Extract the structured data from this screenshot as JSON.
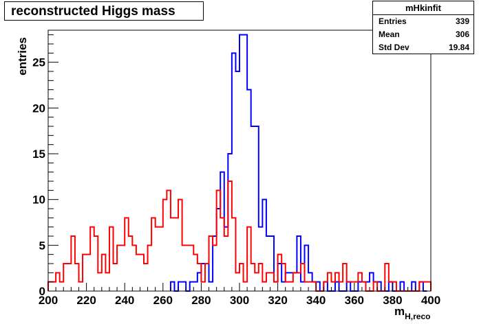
{
  "title": "reconstructed Higgs mass",
  "stats": {
    "name": "mHkinfit",
    "rows": [
      {
        "label": "Entries",
        "value": "339"
      },
      {
        "label": "Mean",
        "value": "306"
      },
      {
        "label": "Std Dev",
        "value": "19.84"
      }
    ]
  },
  "chart_data": {
    "type": "histogram",
    "xlabel": "m",
    "xlabel_sub": "H,reco",
    "ylabel": "entries",
    "xlim": [
      200,
      400
    ],
    "ylim": [
      0,
      28.5
    ],
    "x_ticks": [
      200,
      220,
      240,
      260,
      280,
      300,
      320,
      340,
      360,
      380,
      400
    ],
    "y_ticks": [
      0,
      5,
      10,
      15,
      20,
      25
    ],
    "bin_width": 2,
    "series": [
      {
        "color": "#0000ff",
        "bins": [
          {
            "x": 264,
            "y": 1
          },
          {
            "x": 266,
            "y": 0
          },
          {
            "x": 268,
            "y": 1
          },
          {
            "x": 270,
            "y": 1
          },
          {
            "x": 272,
            "y": 0
          },
          {
            "x": 274,
            "y": 1
          },
          {
            "x": 276,
            "y": 1
          },
          {
            "x": 278,
            "y": 2
          },
          {
            "x": 280,
            "y": 3
          },
          {
            "x": 282,
            "y": 3
          },
          {
            "x": 284,
            "y": 1
          },
          {
            "x": 286,
            "y": 6
          },
          {
            "x": 288,
            "y": 9
          },
          {
            "x": 290,
            "y": 13
          },
          {
            "x": 292,
            "y": 7
          },
          {
            "x": 294,
            "y": 15
          },
          {
            "x": 296,
            "y": 26
          },
          {
            "x": 298,
            "y": 24
          },
          {
            "x": 300,
            "y": 28
          },
          {
            "x": 302,
            "y": 28
          },
          {
            "x": 304,
            "y": 22
          },
          {
            "x": 306,
            "y": 18
          },
          {
            "x": 308,
            "y": 18
          },
          {
            "x": 310,
            "y": 7
          },
          {
            "x": 312,
            "y": 10
          },
          {
            "x": 314,
            "y": 6
          },
          {
            "x": 316,
            "y": 6
          },
          {
            "x": 318,
            "y": 1
          },
          {
            "x": 320,
            "y": 3
          },
          {
            "x": 322,
            "y": 1
          },
          {
            "x": 324,
            "y": 2
          },
          {
            "x": 326,
            "y": 2
          },
          {
            "x": 328,
            "y": 2
          },
          {
            "x": 330,
            "y": 6
          },
          {
            "x": 332,
            "y": 1
          },
          {
            "x": 334,
            "y": 5
          },
          {
            "x": 336,
            "y": 2
          },
          {
            "x": 338,
            "y": 1
          },
          {
            "x": 340,
            "y": 1
          },
          {
            "x": 342,
            "y": 0
          },
          {
            "x": 344,
            "y": 1
          },
          {
            "x": 346,
            "y": 0
          },
          {
            "x": 348,
            "y": 0
          },
          {
            "x": 350,
            "y": 1
          },
          {
            "x": 352,
            "y": 0
          },
          {
            "x": 354,
            "y": 0
          },
          {
            "x": 356,
            "y": 1
          },
          {
            "x": 358,
            "y": 0
          },
          {
            "x": 360,
            "y": 0
          },
          {
            "x": 362,
            "y": 1
          },
          {
            "x": 364,
            "y": 1
          },
          {
            "x": 366,
            "y": 1
          },
          {
            "x": 368,
            "y": 2
          },
          {
            "x": 370,
            "y": 1
          },
          {
            "x": 372,
            "y": 1
          },
          {
            "x": 374,
            "y": 0
          },
          {
            "x": 376,
            "y": 0
          },
          {
            "x": 378,
            "y": 1
          },
          {
            "x": 380,
            "y": 0
          },
          {
            "x": 382,
            "y": 0
          },
          {
            "x": 384,
            "y": 1
          },
          {
            "x": 386,
            "y": 0
          },
          {
            "x": 388,
            "y": 0
          },
          {
            "x": 390,
            "y": 1
          },
          {
            "x": 392,
            "y": 0
          },
          {
            "x": 394,
            "y": 1
          },
          {
            "x": 396,
            "y": 0
          }
        ]
      },
      {
        "color": "#ff0000",
        "bins": [
          {
            "x": 200,
            "y": 1
          },
          {
            "x": 202,
            "y": 1
          },
          {
            "x": 204,
            "y": 2
          },
          {
            "x": 206,
            "y": 1
          },
          {
            "x": 208,
            "y": 3
          },
          {
            "x": 210,
            "y": 3
          },
          {
            "x": 212,
            "y": 6
          },
          {
            "x": 214,
            "y": 3
          },
          {
            "x": 216,
            "y": 1
          },
          {
            "x": 218,
            "y": 4
          },
          {
            "x": 220,
            "y": 4
          },
          {
            "x": 222,
            "y": 7
          },
          {
            "x": 224,
            "y": 6
          },
          {
            "x": 226,
            "y": 2
          },
          {
            "x": 228,
            "y": 4
          },
          {
            "x": 230,
            "y": 2
          },
          {
            "x": 232,
            "y": 7
          },
          {
            "x": 234,
            "y": 3
          },
          {
            "x": 236,
            "y": 5
          },
          {
            "x": 238,
            "y": 5
          },
          {
            "x": 240,
            "y": 8
          },
          {
            "x": 242,
            "y": 6
          },
          {
            "x": 244,
            "y": 5
          },
          {
            "x": 246,
            "y": 4
          },
          {
            "x": 248,
            "y": 4
          },
          {
            "x": 250,
            "y": 3
          },
          {
            "x": 252,
            "y": 5
          },
          {
            "x": 254,
            "y": 8
          },
          {
            "x": 256,
            "y": 7
          },
          {
            "x": 258,
            "y": 7
          },
          {
            "x": 260,
            "y": 10
          },
          {
            "x": 262,
            "y": 11
          },
          {
            "x": 264,
            "y": 8
          },
          {
            "x": 266,
            "y": 8
          },
          {
            "x": 268,
            "y": 10
          },
          {
            "x": 270,
            "y": 5
          },
          {
            "x": 272,
            "y": 5
          },
          {
            "x": 274,
            "y": 5
          },
          {
            "x": 276,
            "y": 4
          },
          {
            "x": 278,
            "y": 3
          },
          {
            "x": 280,
            "y": 1
          },
          {
            "x": 282,
            "y": 3
          },
          {
            "x": 284,
            "y": 6
          },
          {
            "x": 286,
            "y": 5
          },
          {
            "x": 288,
            "y": 11
          },
          {
            "x": 290,
            "y": 8
          },
          {
            "x": 292,
            "y": 6
          },
          {
            "x": 294,
            "y": 12
          },
          {
            "x": 296,
            "y": 8
          },
          {
            "x": 298,
            "y": 2
          },
          {
            "x": 300,
            "y": 3
          },
          {
            "x": 302,
            "y": 1
          },
          {
            "x": 304,
            "y": 7
          },
          {
            "x": 306,
            "y": 3
          },
          {
            "x": 308,
            "y": 2
          },
          {
            "x": 310,
            "y": 3
          },
          {
            "x": 312,
            "y": 1
          },
          {
            "x": 314,
            "y": 2
          },
          {
            "x": 316,
            "y": 2
          },
          {
            "x": 318,
            "y": 1
          },
          {
            "x": 320,
            "y": 4
          },
          {
            "x": 322,
            "y": 3
          },
          {
            "x": 324,
            "y": 1
          },
          {
            "x": 326,
            "y": 1
          },
          {
            "x": 328,
            "y": 2
          },
          {
            "x": 330,
            "y": 2
          },
          {
            "x": 332,
            "y": 3
          },
          {
            "x": 334,
            "y": 1
          },
          {
            "x": 336,
            "y": 1
          },
          {
            "x": 338,
            "y": 1
          },
          {
            "x": 340,
            "y": 0
          },
          {
            "x": 342,
            "y": 0
          },
          {
            "x": 344,
            "y": 1
          },
          {
            "x": 346,
            "y": 2
          },
          {
            "x": 348,
            "y": 1
          },
          {
            "x": 350,
            "y": 2
          },
          {
            "x": 352,
            "y": 1
          },
          {
            "x": 354,
            "y": 3
          },
          {
            "x": 356,
            "y": 1
          },
          {
            "x": 358,
            "y": 1
          },
          {
            "x": 360,
            "y": 1
          },
          {
            "x": 362,
            "y": 2
          },
          {
            "x": 364,
            "y": 1
          },
          {
            "x": 366,
            "y": 0
          },
          {
            "x": 368,
            "y": 0
          },
          {
            "x": 370,
            "y": 1
          },
          {
            "x": 372,
            "y": 0
          },
          {
            "x": 374,
            "y": 0
          },
          {
            "x": 376,
            "y": 3
          },
          {
            "x": 378,
            "y": 1
          },
          {
            "x": 380,
            "y": 1
          },
          {
            "x": 382,
            "y": 0
          },
          {
            "x": 384,
            "y": 0
          },
          {
            "x": 386,
            "y": 0
          },
          {
            "x": 388,
            "y": 0
          },
          {
            "x": 390,
            "y": 0
          },
          {
            "x": 392,
            "y": 0
          },
          {
            "x": 394,
            "y": 1
          },
          {
            "x": 396,
            "y": 1
          },
          {
            "x": 398,
            "y": 1
          }
        ]
      }
    ]
  }
}
